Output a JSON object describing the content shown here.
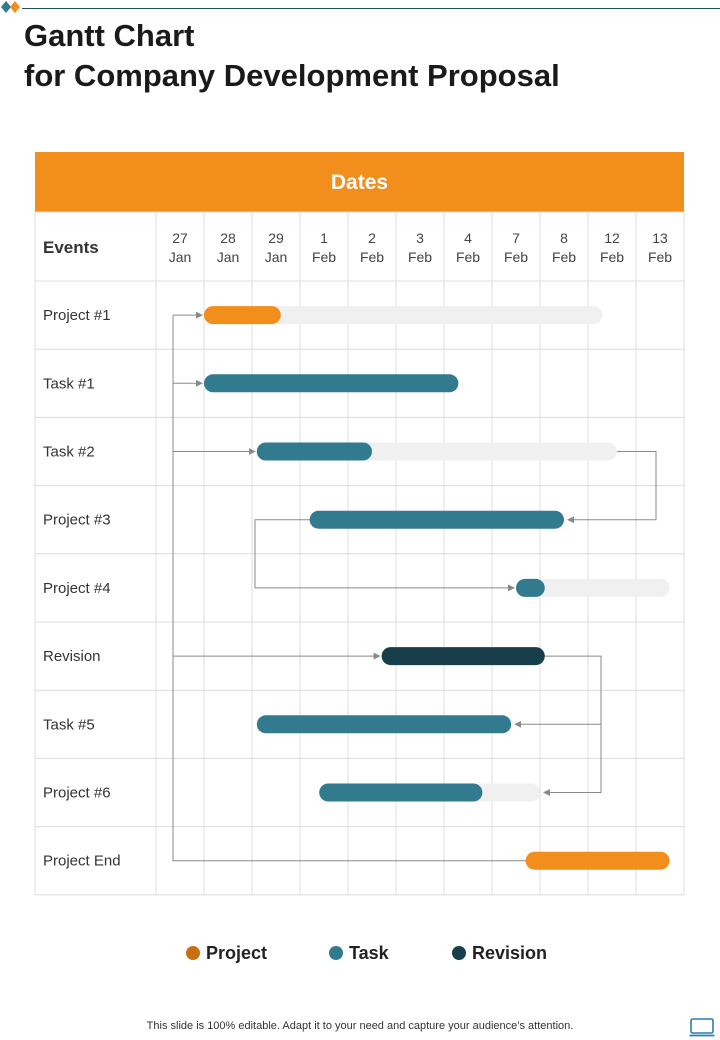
{
  "title": {
    "line1": "Gantt Chart",
    "line2": "for Company Development Proposal"
  },
  "chart_data": {
    "type": "gantt",
    "header": "Dates",
    "events_label": "Events",
    "dates": [
      {
        "day": "27",
        "month": "Jan"
      },
      {
        "day": "28",
        "month": "Jan"
      },
      {
        "day": "29",
        "month": "Jan"
      },
      {
        "day": "1",
        "month": "Feb"
      },
      {
        "day": "2",
        "month": "Feb"
      },
      {
        "day": "3",
        "month": "Feb"
      },
      {
        "day": "4",
        "month": "Feb"
      },
      {
        "day": "7",
        "month": "Feb"
      },
      {
        "day": "8",
        "month": "Feb"
      },
      {
        "day": "12",
        "month": "Feb"
      },
      {
        "day": "13",
        "month": "Feb"
      }
    ],
    "rows": [
      {
        "label": "Project #1",
        "category": "project",
        "start": 1.0,
        "end": 2.6,
        "planned_end": 9.3
      },
      {
        "label": "Task #1",
        "category": "task",
        "start": 1.0,
        "end": 6.3,
        "planned_end": null
      },
      {
        "label": "Task #2",
        "category": "task",
        "start": 2.1,
        "end": 4.5,
        "planned_end": 9.6
      },
      {
        "label": "Project #3",
        "category": "task",
        "start": 3.2,
        "end": 8.5,
        "planned_end": null
      },
      {
        "label": "Project #4",
        "category": "task",
        "start": 7.5,
        "end": 8.1,
        "planned_end": 10.7
      },
      {
        "label": "Revision",
        "category": "revision",
        "start": 4.7,
        "end": 8.1,
        "planned_end": null
      },
      {
        "label": "Task #5",
        "category": "task",
        "start": 2.1,
        "end": 7.4,
        "planned_end": null
      },
      {
        "label": "Project #6",
        "category": "task",
        "start": 3.4,
        "end": 6.8,
        "planned_end": 8.0
      },
      {
        "label": "Project End",
        "category": "project",
        "start": 7.7,
        "end": 10.7,
        "planned_end": null
      }
    ],
    "legend": [
      {
        "name": "Project",
        "color": "#c96f12"
      },
      {
        "name": "Task",
        "color": "#327a8e"
      },
      {
        "name": "Revision",
        "color": "#173e4a"
      }
    ],
    "colors": {
      "header_bg": "#f28e1c",
      "project": "#f28e1c",
      "task": "#327a8e",
      "revision": "#173e4a",
      "track": "#f0f0f0",
      "grid": "#dcdcdc",
      "arrow": "#8a8a8a"
    }
  },
  "footer": {
    "text": "This slide is 100% editable. Adapt it to your need and capture your audience’s attention."
  },
  "icons": {
    "logo": "diamond-logo-icon",
    "monitor": "monitor-icon"
  }
}
